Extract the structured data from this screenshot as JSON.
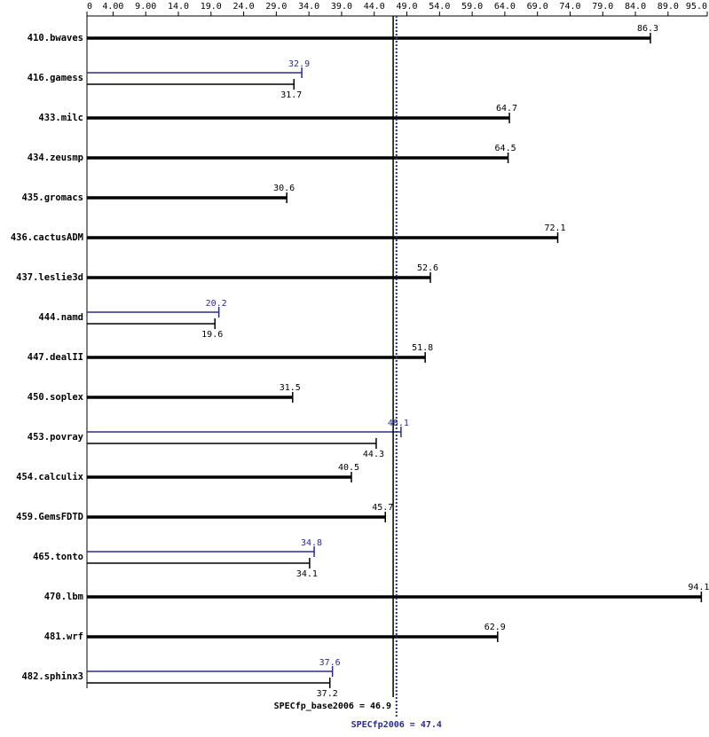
{
  "chart_data": {
    "type": "bar",
    "orientation": "horizontal",
    "categories": [
      "410.bwaves",
      "416.gamess",
      "433.milc",
      "434.zeusmp",
      "435.gromacs",
      "436.cactusADM",
      "437.leslie3d",
      "444.namd",
      "447.dealII",
      "450.soplex",
      "453.povray",
      "454.calculix",
      "459.GemsFDTD",
      "465.tonto",
      "470.lbm",
      "481.wrf",
      "482.sphinx3"
    ],
    "series": [
      {
        "color": "#000000",
        "values": [
          86.3,
          31.7,
          64.7,
          64.5,
          30.6,
          72.1,
          52.6,
          19.6,
          51.8,
          31.5,
          44.3,
          40.5,
          45.7,
          34.1,
          94.1,
          62.9,
          37.2
        ]
      },
      {
        "color": "#2b2b8f",
        "values": [
          null,
          32.9,
          null,
          null,
          null,
          null,
          null,
          20.2,
          null,
          null,
          48.1,
          null,
          null,
          34.8,
          null,
          null,
          37.6
        ]
      }
    ],
    "xlim": [
      0,
      95
    ],
    "xticks": [
      0,
      {
        "value": 4,
        "label": "4.00"
      },
      {
        "value": 9,
        "label": "9.00"
      },
      {
        "value": 14,
        "label": "14.0"
      },
      {
        "value": 19,
        "label": "19.0"
      },
      {
        "value": 24,
        "label": "24.0"
      },
      {
        "value": 29,
        "label": "29.0"
      },
      {
        "value": 34,
        "label": "34.0"
      },
      {
        "value": 39,
        "label": "39.0"
      },
      {
        "value": 44,
        "label": "44.0"
      },
      {
        "value": 49,
        "label": "49.0"
      },
      {
        "value": 54,
        "label": "54.0"
      },
      {
        "value": 59,
        "label": "59.0"
      },
      {
        "value": 64,
        "label": "64.0"
      },
      {
        "value": 69,
        "label": "69.0"
      },
      {
        "value": 74,
        "label": "74.0"
      },
      {
        "value": 79,
        "label": "79.0"
      },
      {
        "value": 84,
        "label": "84.0"
      },
      {
        "value": 89,
        "label": "89.0"
      },
      {
        "value": 95,
        "label": "95.0"
      }
    ],
    "reference_lines": [
      {
        "label": "SPECfp_base2006 = 46.9",
        "value": 46.9,
        "color": "#000000"
      },
      {
        "label": "SPECfp2006 = 47.4",
        "value": 47.4,
        "color": "#2b2b8f"
      }
    ],
    "grid": false
  }
}
